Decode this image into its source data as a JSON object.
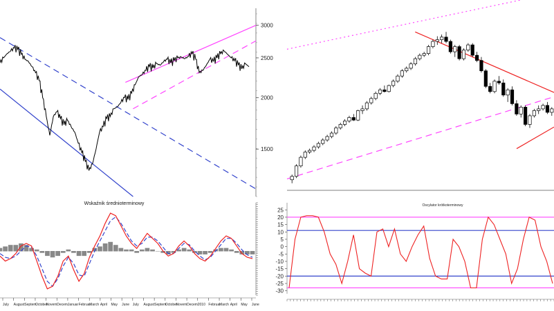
{
  "chart_data": [
    {
      "type": "line",
      "panel": "left-price",
      "y_ticks": [
        3000,
        2500,
        2000,
        1500
      ],
      "ylim": [
        1150,
        3200
      ],
      "y_scale": "log",
      "axis_side": "right",
      "series": [
        {
          "color": "#000000",
          "values": [
            2430,
            2500,
            2560,
            2600,
            2640,
            2620,
            2550,
            2480,
            2450,
            2380,
            2300,
            2200,
            2000,
            1800,
            1620,
            1800,
            1850,
            1780,
            1720,
            1760,
            1700,
            1650,
            1550,
            1470,
            1400,
            1330,
            1380,
            1500,
            1650,
            1700,
            1780,
            1800,
            1880,
            1900,
            1950,
            2000,
            1980,
            2050,
            2150,
            2250,
            2280,
            2330,
            2380,
            2360,
            2420,
            2400,
            2450,
            2480,
            2430,
            2460,
            2500,
            2510,
            2490,
            2520,
            2560,
            2480,
            2300,
            2330,
            2400,
            2480,
            2450,
            2500,
            2560,
            2600,
            2550,
            2500,
            2460,
            2400,
            2350,
            2420,
            2380
          ]
        }
      ],
      "lines": [
        {
          "style": "dashed",
          "color": "#3344cc",
          "from": [
            0,
            2800
          ],
          "to": [
            1,
            1200
          ]
        },
        {
          "style": "solid",
          "color": "#3344cc",
          "from": [
            0,
            2100
          ],
          "to": [
            0.52,
            1150
          ]
        },
        {
          "style": "solid",
          "color": "#ff44ff",
          "from": [
            0.49,
            2180
          ],
          "to": [
            1,
            3000
          ]
        },
        {
          "style": "dashed",
          "color": "#ff44ff",
          "from": [
            0.52,
            1880
          ],
          "to": [
            1,
            2750
          ]
        }
      ]
    },
    {
      "type": "line",
      "panel": "left-oscillator",
      "title": "Wskaźnik średnioterminowy",
      "x_ticks": [
        "July",
        "August",
        "Septem",
        "October",
        "Novem",
        "Decem",
        "Januar",
        "Februar",
        "March",
        "April",
        "May",
        "June",
        "July",
        "August",
        "Septem",
        "October",
        "Novem",
        "Decem",
        "2010",
        "Februar",
        "March",
        "April",
        "May",
        "June"
      ],
      "series": [
        {
          "color": "#ee2222",
          "values": [
            -4,
            -8,
            -6,
            -2,
            4,
            6,
            4,
            -8,
            -20,
            -30,
            -28,
            -20,
            -8,
            -4,
            -15,
            -24,
            -18,
            -5,
            4,
            12,
            22,
            30,
            28,
            20,
            12,
            6,
            2,
            8,
            14,
            10,
            6,
            0,
            -4,
            -2,
            4,
            8,
            4,
            -2,
            -6,
            -8,
            -4,
            2,
            8,
            12,
            10,
            4,
            -2,
            -5,
            -6
          ]
        },
        {
          "color": "#3344cc",
          "values": [
            -2,
            -5,
            -6,
            -4,
            0,
            4,
            3,
            -4,
            -14,
            -24,
            -28,
            -22,
            -12,
            -5,
            -10,
            -19,
            -20,
            -10,
            0,
            8,
            16,
            24,
            27,
            22,
            15,
            8,
            4,
            6,
            11,
            11,
            8,
            3,
            -2,
            -2,
            2,
            6,
            5,
            0,
            -4,
            -7,
            -5,
            0,
            5,
            10,
            10,
            6,
            1,
            -3,
            -5
          ]
        }
      ],
      "bars": [
        2,
        3,
        4,
        4,
        5,
        4,
        2,
        1,
        -1,
        -3,
        -4,
        -3,
        -1,
        1,
        -1,
        -3,
        -3,
        -1,
        2,
        3,
        5,
        6,
        4,
        2,
        1,
        1,
        -1,
        1,
        2,
        1,
        0,
        -1,
        -2,
        -1,
        1,
        2,
        1,
        -1,
        -2,
        -2,
        -1,
        1,
        2,
        2,
        1,
        -1,
        -2,
        -2,
        -2
      ]
    },
    {
      "type": "candlestick",
      "panel": "right-price",
      "candles": [
        [
          1140,
          1200,
          1100,
          1180
        ],
        [
          1180,
          1320,
          1160,
          1300
        ],
        [
          1300,
          1420,
          1280,
          1400
        ],
        [
          1400,
          1480,
          1380,
          1460
        ],
        [
          1460,
          1500,
          1440,
          1480
        ],
        [
          1480,
          1540,
          1460,
          1520
        ],
        [
          1520,
          1580,
          1500,
          1560
        ],
        [
          1560,
          1620,
          1540,
          1600
        ],
        [
          1600,
          1660,
          1580,
          1640
        ],
        [
          1640,
          1700,
          1620,
          1680
        ],
        [
          1680,
          1760,
          1660,
          1740
        ],
        [
          1740,
          1800,
          1720,
          1780
        ],
        [
          1780,
          1840,
          1760,
          1820
        ],
        [
          1820,
          1880,
          1800,
          1860
        ],
        [
          1860,
          1900,
          1820,
          1830
        ],
        [
          1830,
          1950,
          1820,
          1940
        ],
        [
          1940,
          2000,
          1900,
          1960
        ],
        [
          1960,
          2050,
          1940,
          2030
        ],
        [
          2030,
          2100,
          2010,
          2080
        ],
        [
          2080,
          2160,
          2060,
          2140
        ],
        [
          2140,
          2200,
          2120,
          2180
        ],
        [
          2180,
          2230,
          2150,
          2160
        ],
        [
          2160,
          2240,
          2150,
          2230
        ],
        [
          2230,
          2300,
          2210,
          2280
        ],
        [
          2280,
          2360,
          2260,
          2340
        ],
        [
          2340,
          2420,
          2320,
          2400
        ],
        [
          2400,
          2450,
          2380,
          2430
        ],
        [
          2430,
          2500,
          2410,
          2480
        ],
        [
          2480,
          2560,
          2460,
          2540
        ],
        [
          2540,
          2600,
          2520,
          2580
        ],
        [
          2580,
          2620,
          2560,
          2600
        ],
        [
          2600,
          2700,
          2580,
          2680
        ],
        [
          2680,
          2760,
          2660,
          2740
        ],
        [
          2740,
          2800,
          2700,
          2760
        ],
        [
          2760,
          2820,
          2720,
          2790
        ],
        [
          2790,
          2850,
          2720,
          2740
        ],
        [
          2740,
          2760,
          2600,
          2620
        ],
        [
          2620,
          2700,
          2560,
          2680
        ],
        [
          2680,
          2700,
          2520,
          2540
        ],
        [
          2540,
          2660,
          2520,
          2640
        ],
        [
          2640,
          2720,
          2620,
          2700
        ],
        [
          2700,
          2720,
          2560,
          2580
        ],
        [
          2580,
          2620,
          2500,
          2520
        ],
        [
          2520,
          2560,
          2380,
          2400
        ],
        [
          2400,
          2420,
          2200,
          2220
        ],
        [
          2220,
          2260,
          2140,
          2160
        ],
        [
          2160,
          2300,
          2140,
          2280
        ],
        [
          2280,
          2340,
          2240,
          2260
        ],
        [
          2260,
          2300,
          2100,
          2120
        ],
        [
          2120,
          2200,
          2040,
          2180
        ],
        [
          2180,
          2220,
          2000,
          2020
        ],
        [
          2020,
          2060,
          1880,
          1900
        ],
        [
          1900,
          2000,
          1860,
          1980
        ],
        [
          1980,
          2000,
          1760,
          1780
        ],
        [
          1780,
          1900,
          1740,
          1880
        ],
        [
          1880,
          1960,
          1860,
          1940
        ],
        [
          1940,
          2000,
          1900,
          1960
        ],
        [
          1960,
          2020,
          1940,
          2000
        ],
        [
          2000,
          2040,
          1900,
          1920
        ],
        [
          1920,
          1980,
          1880,
          1960
        ]
      ],
      "lines": [
        {
          "style": "dotted",
          "color": "#ff44ff",
          "from": [
            0,
            2650
          ],
          "to": [
            1,
            3300
          ]
        },
        {
          "style": "dashed",
          "color": "#ff44ff",
          "from": [
            0,
            1150
          ],
          "to": [
            1,
            2100
          ]
        },
        {
          "style": "solid",
          "color": "#ee2222",
          "from": [
            0.48,
            2850
          ],
          "to": [
            1,
            2150
          ]
        },
        {
          "style": "solid",
          "color": "#ee2222",
          "from": [
            0.86,
            1500
          ],
          "to": [
            1,
            1750
          ]
        }
      ]
    },
    {
      "type": "line",
      "panel": "right-oscillator",
      "title": "Oscylator krótkoterminowy",
      "y_ticks": [
        25,
        20,
        15,
        10,
        5,
        0,
        -5,
        -10,
        -15,
        -20,
        -25,
        -30
      ],
      "ylim": [
        -32,
        27
      ],
      "axis_side": "left",
      "hlines": [
        {
          "value": 20,
          "color": "#ff44ff"
        },
        {
          "value": 11,
          "color": "#3344cc"
        },
        {
          "value": -20,
          "color": "#3344cc"
        },
        {
          "value": -28,
          "color": "#ff44ff"
        }
      ],
      "series": [
        {
          "color": "#ee2222",
          "values": [
            -28,
            5,
            20,
            21,
            21,
            20,
            10,
            -5,
            -12,
            -25,
            -10,
            8,
            -15,
            -18,
            -20,
            10,
            12,
            0,
            12,
            -5,
            -10,
            0,
            8,
            14,
            -8,
            -20,
            -22,
            -22,
            5,
            0,
            -10,
            -28,
            -28,
            5,
            20,
            15,
            5,
            -5,
            -25,
            -15,
            5,
            20,
            18,
            0,
            -10,
            -25
          ]
        }
      ]
    }
  ]
}
